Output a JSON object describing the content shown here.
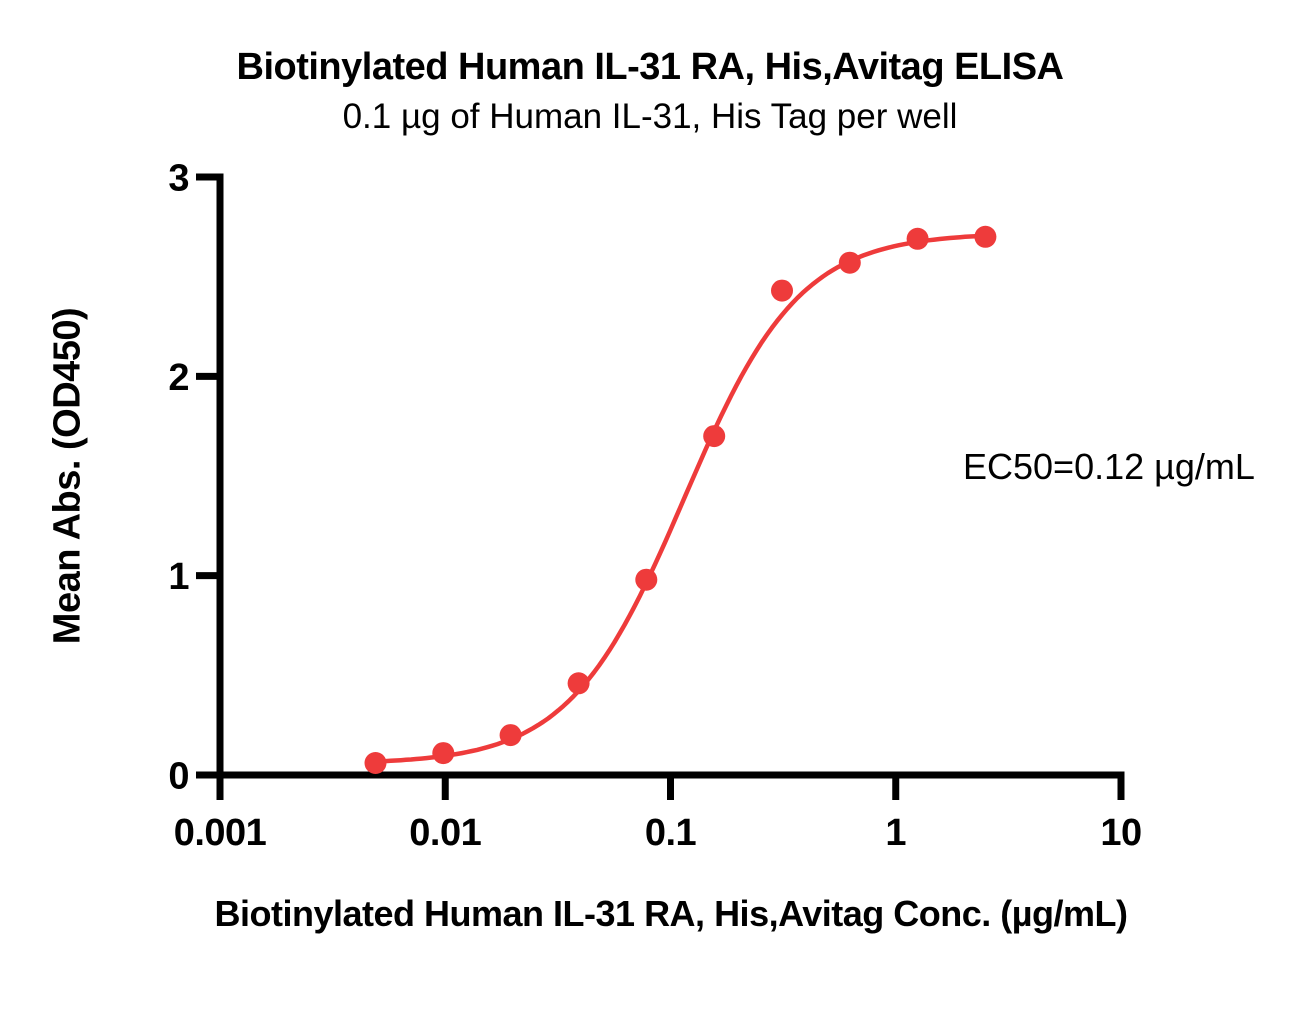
{
  "chart_data": {
    "type": "scatter",
    "title": "Biotinylated Human IL-31 RA, His,Avitag ELISA",
    "subtitle": "0.1 µg of Human IL-31, His Tag per well",
    "xlabel": "Biotinylated Human IL-31 RA, His,Avitag Conc. (µg/mL)",
    "ylabel": "Mean Abs. (OD450)",
    "annotation": "EC50=0.12 µg/mL",
    "ec50_value_text": "0.12",
    "x_scale": "log",
    "xlim": [
      0.001,
      10
    ],
    "ylim": [
      0,
      3
    ],
    "x_ticks": [
      0.001,
      0.01,
      0.1,
      1,
      10
    ],
    "x_tick_labels": [
      "0.001",
      "0.01",
      "0.1",
      "1",
      "10"
    ],
    "y_ticks": [
      0,
      1,
      2,
      3
    ],
    "y_tick_labels": [
      "0",
      "1",
      "2",
      "3"
    ],
    "grid": false,
    "legend": false,
    "series": [
      {
        "marker": "circle",
        "color": "#ee3b3b",
        "x": [
          0.0049,
          0.0098,
          0.0195,
          0.0391,
          0.0781,
          0.1563,
          0.3125,
          0.625,
          1.25,
          2.5
        ],
        "y": [
          0.06,
          0.11,
          0.2,
          0.46,
          0.98,
          1.7,
          2.43,
          2.57,
          2.69,
          2.7
        ]
      }
    ],
    "fit_curve": {
      "model": "4PL",
      "bottom": 0.055,
      "top": 2.72,
      "ec50": 0.115,
      "hill": 1.7
    }
  },
  "colors": {
    "series": "#ee3b3b",
    "axis": "#000000",
    "text": "#000000",
    "background": "#ffffff"
  }
}
